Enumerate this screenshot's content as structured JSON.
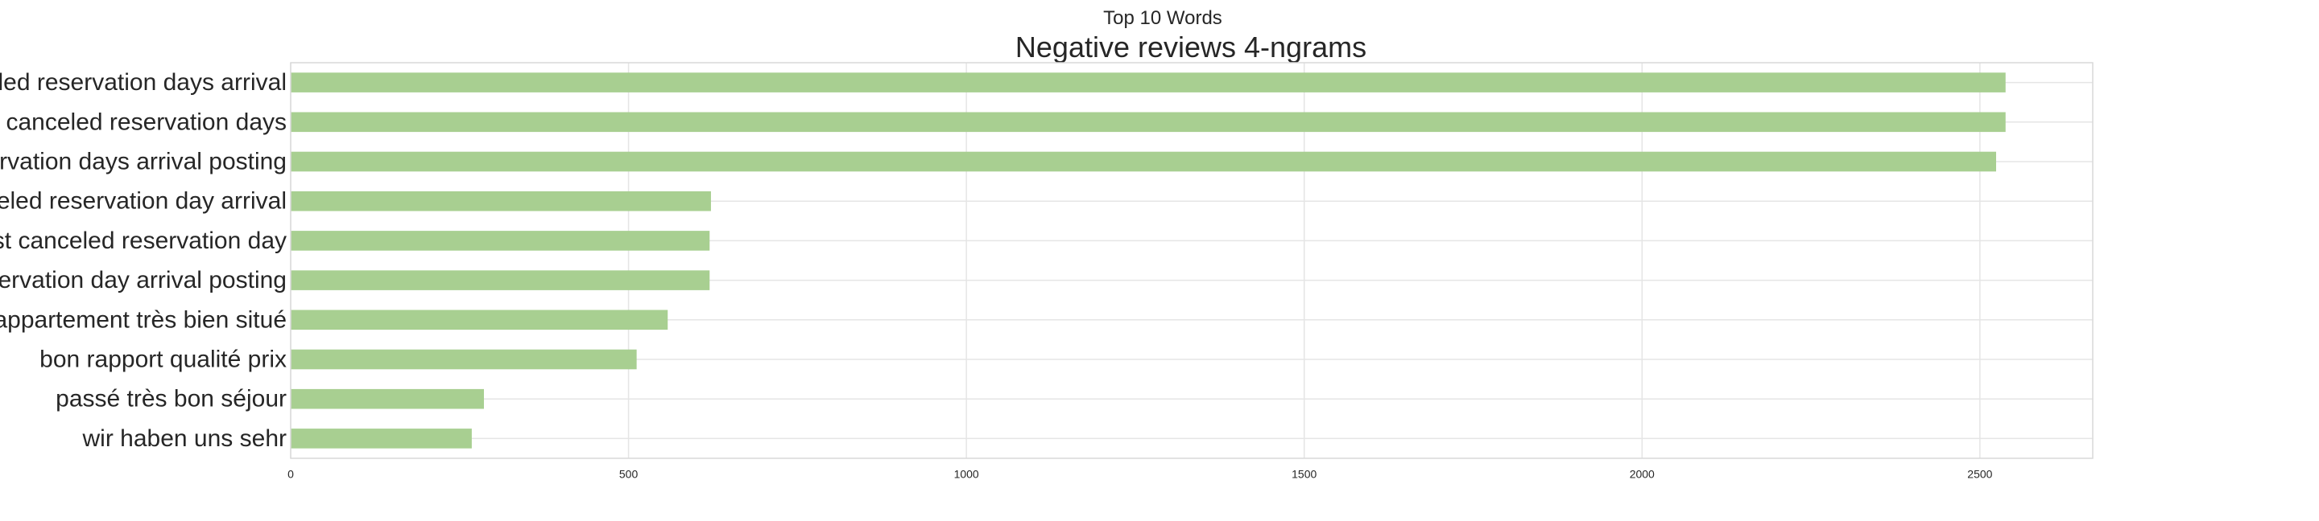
{
  "suptitle": "Top 10 Words",
  "chart_data": {
    "type": "bar",
    "orientation": "horizontal",
    "title": "Negative reviews 4-ngrams",
    "xlabel": "",
    "ylabel": "",
    "categories": [
      "led reservation days arrival",
      "canceled reservation days",
      "rvation days arrival posting",
      "eled reservation day arrival",
      "st canceled reservation day",
      "ervation day arrival posting",
      "appartement très bien situé",
      "bon rapport qualité prix",
      "passé très bon séjour",
      "wir haben uns sehr"
    ],
    "values": [
      2538,
      2538,
      2524,
      622,
      620,
      620,
      558,
      512,
      286,
      268
    ],
    "xlim": [
      0,
      2667
    ],
    "xticks": [
      "0",
      "500",
      "1000",
      "1500",
      "2000",
      "2500"
    ],
    "bar_color": "#a8cf91",
    "grid": true,
    "legend": "none"
  }
}
